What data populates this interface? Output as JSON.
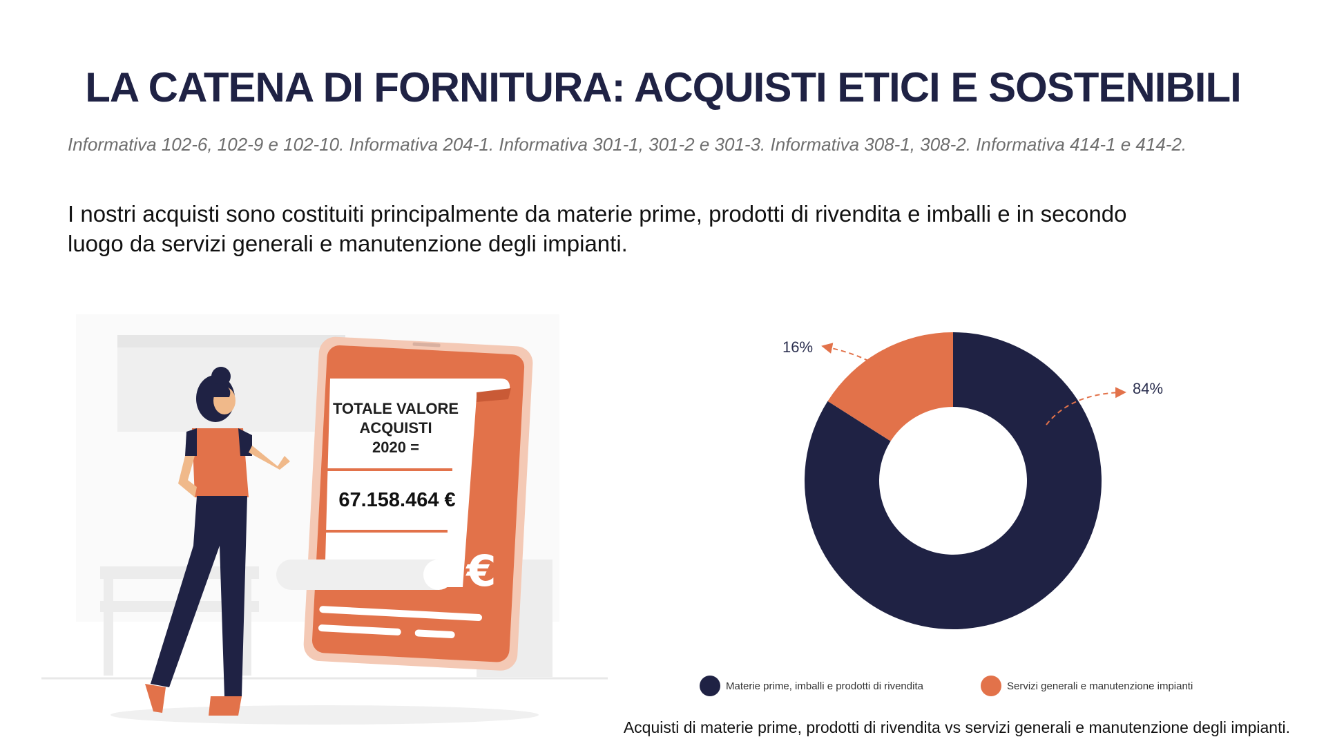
{
  "header": {
    "title": "LA CATENA DI FORNITURA: ACQUISTI ETICI E SOSTENIBILI",
    "references": "Informativa 102-6, 102-9 e 102-10. Informativa 204-1. Informativa 301-1, 301-2 e 301-3. Informativa 308-1, 308-2. Informativa 414-1 e 414-2."
  },
  "intro": {
    "line1": "I nostri acquisti sono costituiti principalmente da materie prime, prodotti di rivendita e imballi e in secondo",
    "line2": "luogo da servizi generali e manutenzione degli impianti."
  },
  "receipt": {
    "label_line1": "TOTALE VALORE",
    "label_line2": "ACQUISTI",
    "label_line3": "2020 =",
    "amount": "67.158.464 €",
    "euro_symbol": "€"
  },
  "colors": {
    "navy": "#1f2244",
    "orange": "#e2724a",
    "light_orange": "#f4c9b5"
  },
  "chart_data": {
    "type": "pie",
    "donut": true,
    "categories": [
      "Materie prime, imballi e prodotti di rivendita",
      "Servizi generali e manutenzione impianti"
    ],
    "values": [
      84,
      16
    ],
    "labels": [
      "84%",
      "16%"
    ],
    "colors": [
      "#1f2244",
      "#e2724a"
    ],
    "legend": "bottom"
  },
  "caption": "Acquisti di materie prime, prodotti di rivendita vs servizi generali e manutenzione degli impianti."
}
